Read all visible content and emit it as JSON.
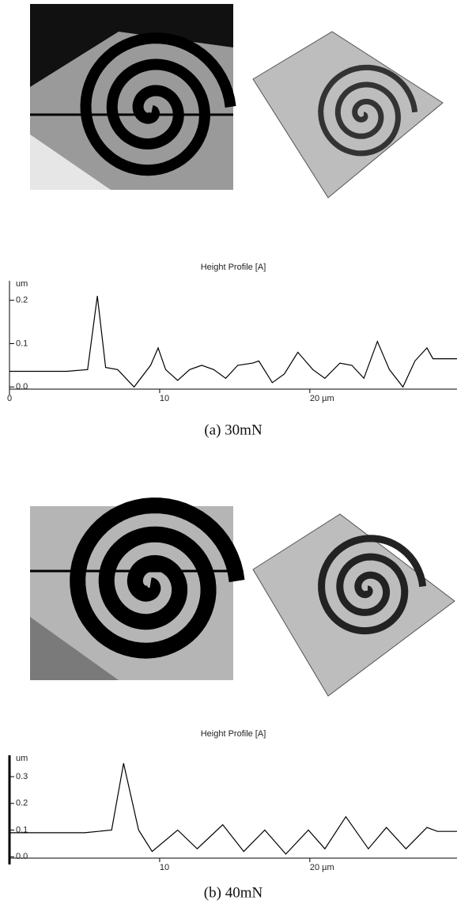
{
  "chart_data": [
    {
      "type": "line",
      "title": "Height Profile [A]",
      "ylabel": "um",
      "color": "#000000",
      "x": [
        0,
        3.8,
        5.2,
        5.85,
        6.4,
        7.2,
        8.3,
        9.4,
        9.9,
        10.4,
        11.2,
        12,
        12.8,
        13.6,
        14.4,
        15.2,
        16.2,
        16.6,
        17.5,
        18.3,
        19.2,
        20.2,
        21,
        22,
        22.8,
        23.6,
        24.5,
        25.3,
        26.2,
        27,
        27.8,
        28.2,
        29.8
      ],
      "series": [
        {
          "values": [
            0.036,
            0.036,
            0.04,
            0.21,
            0.045,
            0.04,
            0.0,
            0.05,
            0.09,
            0.04,
            0.015,
            0.04,
            0.05,
            0.04,
            0.02,
            0.05,
            0.055,
            0.06,
            0.01,
            0.03,
            0.08,
            0.04,
            0.02,
            0.055,
            0.05,
            0.02,
            0.105,
            0.04,
            0.0,
            0.06,
            0.09,
            0.065,
            0.065
          ]
        }
      ],
      "xlim": [
        0,
        29.8
      ],
      "ylim": [
        -0.005,
        0.245
      ],
      "xticks": [
        0,
        10,
        {
          "value": 20,
          "label": "20 µm"
        }
      ],
      "yticks": [
        {
          "value": 0,
          "label": "0.0"
        },
        0.1,
        0.2
      ],
      "caption": "(a) 30mN"
    },
    {
      "type": "line",
      "title": "Height Profile [A]",
      "ylabel": "um",
      "color": "#000000",
      "x": [
        0,
        5,
        6.8,
        7.6,
        8.6,
        9.5,
        11.2,
        12.5,
        14.2,
        15.6,
        17,
        18.4,
        19.9,
        21,
        22.4,
        23.9,
        25.1,
        26.4,
        27.8,
        28.5,
        29.8
      ],
      "series": [
        {
          "values": [
            0.09,
            0.09,
            0.1,
            0.35,
            0.1,
            0.02,
            0.1,
            0.03,
            0.12,
            0.02,
            0.1,
            0.01,
            0.1,
            0.03,
            0.15,
            0.03,
            0.11,
            0.03,
            0.11,
            0.095,
            0.095
          ]
        }
      ],
      "xlim": [
        0,
        29.8
      ],
      "ylim": [
        -0.005,
        0.38
      ],
      "xticks": [
        10,
        {
          "value": 20,
          "label": "20 µm"
        }
      ],
      "yticks": [
        {
          "value": 0,
          "label": "0.0"
        },
        0.1,
        0.2,
        0.3
      ],
      "caption": "(b) 40mN"
    }
  ]
}
